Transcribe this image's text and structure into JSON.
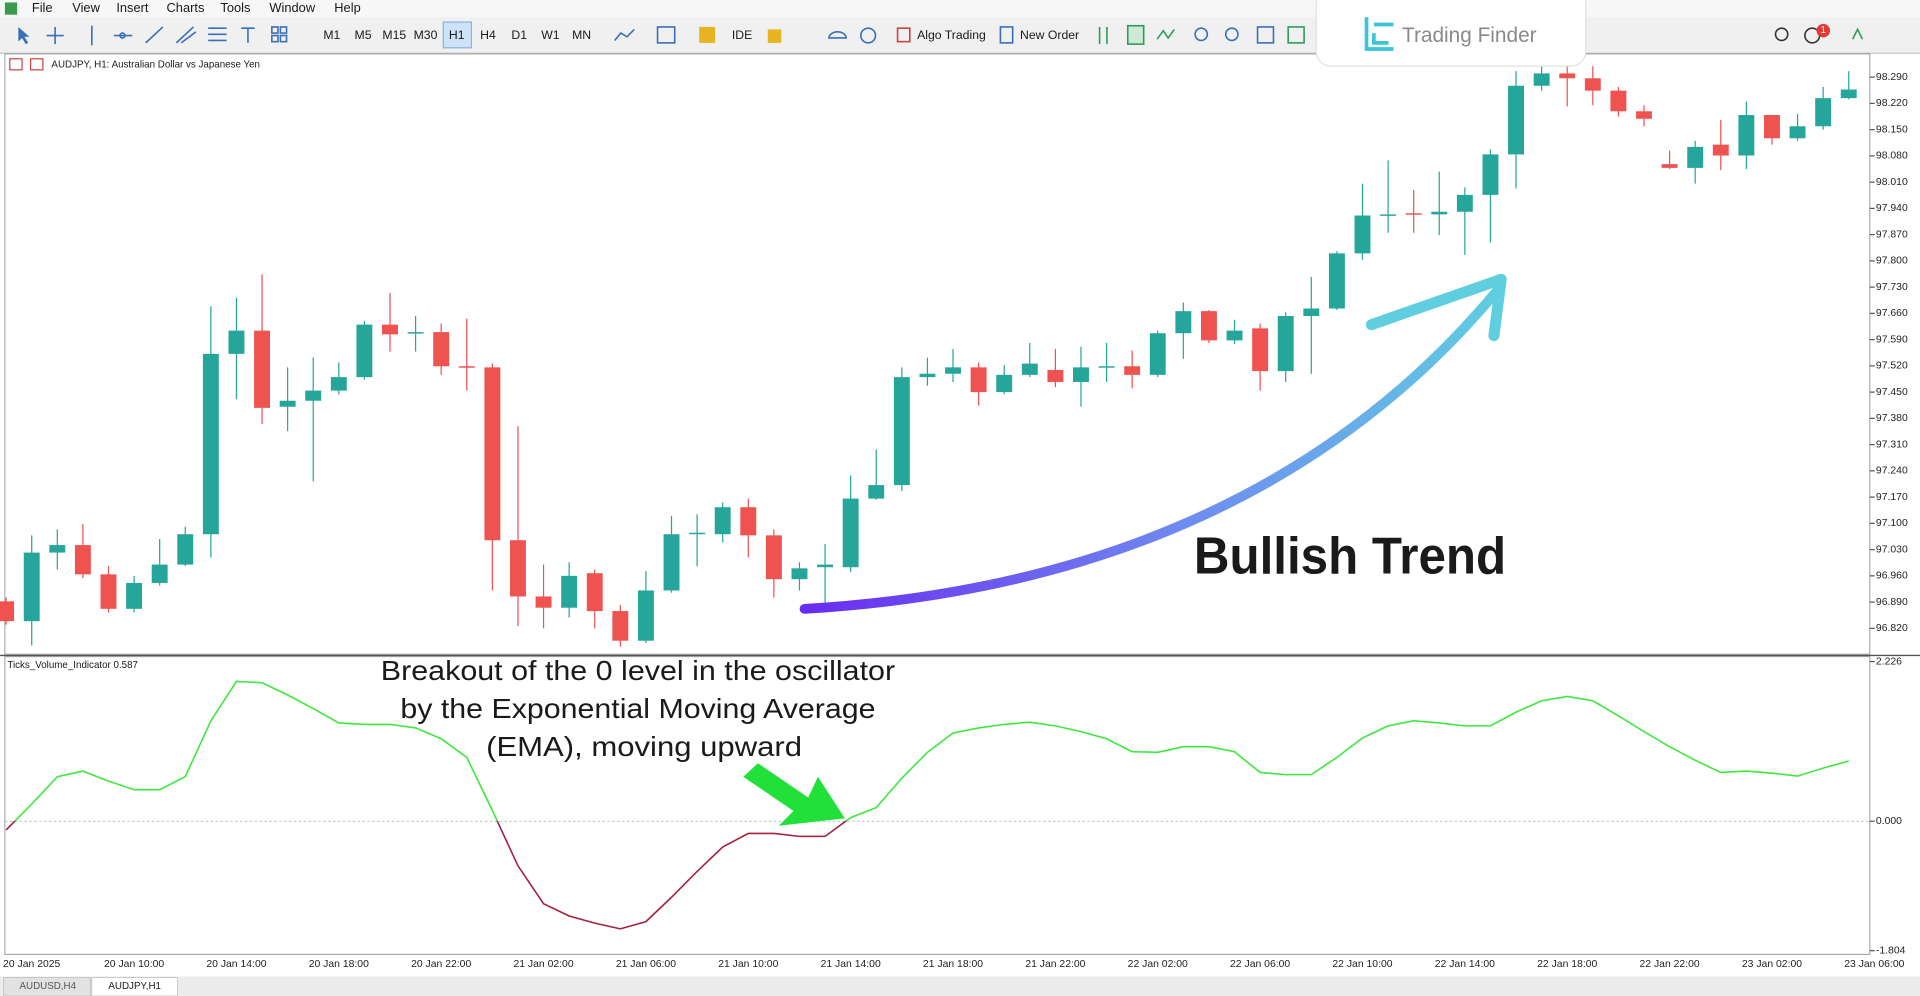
{
  "menu": [
    "File",
    "View",
    "Insert",
    "Charts",
    "Tools",
    "Window",
    "Help"
  ],
  "toolbar": {
    "timeframes": [
      "M1",
      "M5",
      "M15",
      "M30",
      "H1",
      "H4",
      "D1",
      "W1",
      "MN"
    ],
    "ide": "IDE",
    "algo_trading": "Algo Trading",
    "new_order": "New Order",
    "notification_count": 1
  },
  "logo": "Trading Finder",
  "tabs": [
    "AUDUSD,H4",
    "AUDJPY,H1"
  ],
  "chart_data": [
    {
      "type": "candlestick",
      "title": "AUDJPY, H1: Australian Dollar vs Japanese Yen",
      "annotation": "Bullish Trend",
      "categories": [
        null,
        "20 Jan 2025",
        null,
        null,
        null,
        "20 Jan 10:00",
        null,
        null,
        null,
        "20 Jan 14:00",
        null,
        null,
        null,
        "20 Jan 18:00",
        null,
        null,
        null,
        "20 Jan 22:00",
        null,
        null,
        null,
        "21 Jan 02:00",
        null,
        null,
        null,
        "21 Jan 06:00",
        null,
        null,
        null,
        "21 Jan 10:00",
        null,
        null,
        null,
        "21 Jan 14:00",
        null,
        null,
        null,
        "21 Jan 18:00",
        null,
        null,
        null,
        "21 Jan 22:00",
        null,
        null,
        null,
        "22 Jan 02:00",
        null,
        null,
        null,
        "22 Jan 06:00",
        null,
        null,
        null,
        "22 Jan 10:00",
        null,
        null,
        null,
        "22 Jan 14:00",
        null,
        null,
        null,
        "22 Jan 18:00",
        null,
        null,
        null,
        "22 Jan 22:00",
        null,
        null,
        null,
        "23 Jan 02:00",
        null,
        null,
        null,
        "23 Jan 06:00"
      ],
      "open": [
        96.892,
        96.839,
        97.022,
        97.042,
        96.964,
        96.872,
        96.941,
        96.99,
        97.071,
        97.552,
        97.614,
        97.411,
        97.427,
        97.454,
        97.49,
        97.63,
        97.607,
        97.61,
        97.519,
        97.516,
        97.055,
        96.905,
        96.875,
        96.967,
        96.866,
        96.787,
        96.921,
        97.071,
        97.071,
        97.143,
        97.068,
        96.951,
        96.983,
        96.983,
        97.166,
        97.202,
        97.49,
        97.499,
        97.516,
        97.45,
        97.496,
        97.509,
        97.477,
        97.516,
        97.519,
        97.496,
        97.607,
        97.666,
        97.588,
        97.62,
        97.506,
        97.653,
        97.673,
        97.82,
        97.921,
        97.927,
        97.924,
        97.931,
        97.976,
        98.084,
        98.267,
        98.3,
        98.287,
        98.254,
        98.199,
        98.058,
        98.048,
        98.11,
        98.081,
        98.189,
        98.127,
        98.159,
        98.234,
        null
      ],
      "high": [
        96.902,
        97.068,
        97.084,
        97.098,
        96.986,
        96.96,
        97.058,
        97.091,
        97.679,
        97.702,
        97.764,
        97.516,
        97.542,
        97.529,
        97.64,
        97.715,
        97.653,
        97.633,
        97.646,
        97.526,
        97.359,
        96.99,
        96.996,
        96.977,
        96.882,
        96.973,
        97.12,
        97.124,
        97.156,
        97.166,
        97.084,
        96.996,
        97.045,
        97.228,
        97.297,
        97.516,
        97.542,
        97.565,
        97.529,
        97.522,
        97.581,
        97.565,
        97.571,
        97.581,
        97.561,
        97.614,
        97.689,
        97.669,
        97.643,
        97.633,
        97.663,
        97.757,
        97.826,
        98.006,
        98.068,
        97.989,
        98.038,
        97.996,
        98.097,
        98.306,
        98.319,
        98.329,
        98.319,
        98.264,
        98.215,
        98.094,
        98.12,
        98.176,
        98.225,
        98.189,
        98.192,
        98.264,
        98.306,
        null
      ],
      "low": [
        96.83,
        96.774,
        96.977,
        96.954,
        96.862,
        96.862,
        96.934,
        96.986,
        97.009,
        97.431,
        97.365,
        97.346,
        97.212,
        97.444,
        97.483,
        97.558,
        97.558,
        97.496,
        97.454,
        96.921,
        96.826,
        96.82,
        96.849,
        96.82,
        96.771,
        96.781,
        96.915,
        96.986,
        97.049,
        97.009,
        96.902,
        96.921,
        96.879,
        96.97,
        97.163,
        97.186,
        97.467,
        97.477,
        97.414,
        97.444,
        97.49,
        97.463,
        97.411,
        97.477,
        97.46,
        97.49,
        97.539,
        97.581,
        97.578,
        97.454,
        97.477,
        97.499,
        97.669,
        97.803,
        97.875,
        97.875,
        97.869,
        97.816,
        97.849,
        97.993,
        98.254,
        98.212,
        98.215,
        98.185,
        98.159,
        98.045,
        98.006,
        98.042,
        98.045,
        98.11,
        98.12,
        98.15,
        98.231,
        null
      ],
      "close": [
        96.839,
        97.022,
        97.042,
        96.964,
        96.872,
        96.941,
        96.99,
        97.071,
        97.552,
        97.614,
        97.408,
        97.427,
        97.454,
        97.49,
        97.63,
        97.604,
        97.61,
        97.519,
        97.516,
        97.055,
        96.905,
        96.875,
        96.96,
        96.866,
        96.787,
        96.921,
        97.071,
        97.075,
        97.143,
        97.068,
        96.951,
        96.98,
        96.99,
        97.166,
        97.202,
        97.49,
        97.499,
        97.516,
        97.45,
        97.496,
        97.526,
        97.477,
        97.516,
        97.519,
        97.496,
        97.607,
        97.666,
        97.588,
        97.614,
        97.506,
        97.653,
        97.673,
        97.82,
        97.921,
        97.924,
        97.924,
        97.931,
        97.976,
        98.084,
        98.267,
        98.3,
        98.287,
        98.254,
        98.199,
        98.179,
        98.048,
        98.104,
        98.081,
        98.189,
        98.127,
        98.159,
        98.234,
        98.257,
        null
      ],
      "up_color": "#26a69a",
      "down_color": "#ef5350",
      "ylim": [
        96.751,
        98.352
      ],
      "yticks": [
        {
          "value": 98.29,
          "label": "98.290"
        },
        {
          "value": 98.22,
          "label": "98.220"
        },
        {
          "value": 98.15,
          "label": "98.150"
        },
        {
          "value": 98.08,
          "label": "98.080"
        },
        {
          "value": 98.01,
          "label": "98.010"
        },
        {
          "value": 97.94,
          "label": "97.940"
        },
        {
          "value": 97.87,
          "label": "97.870"
        },
        {
          "value": 97.8,
          "label": "97.800"
        },
        {
          "value": 97.73,
          "label": "97.730"
        },
        {
          "value": 97.66,
          "label": "97.660"
        },
        {
          "value": 97.59,
          "label": "97.590"
        },
        {
          "value": 97.52,
          "label": "97.520"
        },
        {
          "value": 97.45,
          "label": "97.450"
        },
        {
          "value": 97.38,
          "label": "97.380"
        },
        {
          "value": 97.31,
          "label": "97.310"
        },
        {
          "value": 97.24,
          "label": "97.240"
        },
        {
          "value": 97.17,
          "label": "97.170"
        },
        {
          "value": 97.1,
          "label": "97.100"
        },
        {
          "value": 97.03,
          "label": "97.030"
        },
        {
          "value": 96.96,
          "label": "96.960"
        },
        {
          "value": 96.89,
          "label": "96.890"
        },
        {
          "value": 96.82,
          "label": "96.820"
        }
      ]
    },
    {
      "type": "line",
      "title": "Ticks_Volume_Indicator 0.587",
      "annotation": [
        "Breakout of the 0 level in the oscillator",
        "by the Exponential Moving Average",
        "(EMA), moving upward"
      ],
      "values": [
        -0.12,
        0.24,
        0.62,
        0.7,
        0.56,
        0.44,
        0.44,
        0.62,
        1.4,
        1.95,
        1.93,
        1.76,
        1.57,
        1.37,
        1.35,
        1.35,
        1.3,
        1.15,
        0.89,
        0.15,
        -0.62,
        -1.15,
        -1.32,
        -1.42,
        -1.5,
        -1.4,
        -1.06,
        -0.7,
        -0.36,
        -0.17,
        -0.17,
        -0.21,
        -0.21,
        0.05,
        0.19,
        0.6,
        0.96,
        1.23,
        1.3,
        1.35,
        1.38,
        1.33,
        1.25,
        1.15,
        0.97,
        0.96,
        1.04,
        1.04,
        0.97,
        0.68,
        0.65,
        0.65,
        0.89,
        1.16,
        1.33,
        1.4,
        1.37,
        1.33,
        1.33,
        1.52,
        1.68,
        1.74,
        1.68,
        1.47,
        1.25,
        1.04,
        0.85,
        0.68,
        0.7,
        0.67,
        0.63,
        0.74,
        0.84,
        null
      ],
      "color_above": "#3ee83e",
      "color_below": "#a3203f",
      "ylim": [
        -1.804,
        2.226
      ],
      "yticks": [
        2.226,
        {
          "value": 0,
          "label": "0.000"
        },
        -1.804
      ],
      "zero_line": true
    }
  ]
}
